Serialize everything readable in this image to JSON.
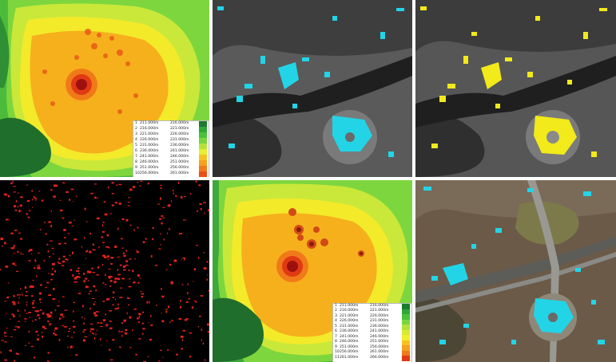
{
  "panels": [
    {
      "id": "dem-top",
      "kind": "elevation-raster"
    },
    {
      "id": "gray-cyan-top",
      "kind": "hillshade-overlay",
      "overlay_color": "#22d4e6"
    },
    {
      "id": "gray-yellow-top",
      "kind": "hillshade-overlay",
      "overlay_color": "#f2ea1a"
    },
    {
      "id": "black-red",
      "kind": "difference-raster",
      "overlay_color": "#e0241e"
    },
    {
      "id": "dem-bottom",
      "kind": "elevation-raster"
    },
    {
      "id": "aerial-cyan",
      "kind": "aerial-photo-overlay",
      "overlay_color": "#22d4e6"
    }
  ],
  "legend_top": {
    "rows": [
      {
        "n": "1",
        "lo": "211.000m",
        "hi": "216.000m",
        "color": "#1b7a2e"
      },
      {
        "n": "2",
        "lo": "216.000m",
        "hi": "221.000m",
        "color": "#2ea836"
      },
      {
        "n": "3",
        "lo": "221.000m",
        "hi": "226.000m",
        "color": "#49c23a"
      },
      {
        "n": "4",
        "lo": "226.000m",
        "hi": "231.000m",
        "color": "#78d63c"
      },
      {
        "n": "5",
        "lo": "231.000m",
        "hi": "236.000m",
        "color": "#b4e23a"
      },
      {
        "n": "6",
        "lo": "236.000m",
        "hi": "241.000m",
        "color": "#e9ef2e"
      },
      {
        "n": "7",
        "lo": "241.000m",
        "hi": "246.000m",
        "color": "#f6c21f"
      },
      {
        "n": "8",
        "lo": "246.000m",
        "hi": "251.000m",
        "color": "#f4a11c"
      },
      {
        "n": "9",
        "lo": "251.000m",
        "hi": "256.000m",
        "color": "#f07a1a"
      },
      {
        "n": "10",
        "lo": "256.000m",
        "hi": "261.000m",
        "color": "#e85017"
      }
    ]
  },
  "legend_bottom": {
    "rows": [
      {
        "n": "1",
        "lo": "211.000m",
        "hi": "216.000m",
        "color": "#1b7a2e"
      },
      {
        "n": "2",
        "lo": "216.000m",
        "hi": "221.000m",
        "color": "#2ea836"
      },
      {
        "n": "3",
        "lo": "221.000m",
        "hi": "226.000m",
        "color": "#49c23a"
      },
      {
        "n": "4",
        "lo": "226.000m",
        "hi": "231.000m",
        "color": "#78d63c"
      },
      {
        "n": "5",
        "lo": "231.000m",
        "hi": "236.000m",
        "color": "#b4e23a"
      },
      {
        "n": "6",
        "lo": "236.000m",
        "hi": "241.000m",
        "color": "#d8ea32"
      },
      {
        "n": "7",
        "lo": "241.000m",
        "hi": "246.000m",
        "color": "#f1ee2c"
      },
      {
        "n": "8",
        "lo": "246.000m",
        "hi": "251.000m",
        "color": "#f6c21f"
      },
      {
        "n": "9",
        "lo": "251.000m",
        "hi": "256.000m",
        "color": "#f4a11c"
      },
      {
        "n": "10",
        "lo": "256.000m",
        "hi": "261.000m",
        "color": "#f07a1a"
      },
      {
        "n": "11",
        "lo": "261.000m",
        "hi": "266.000m",
        "color": "#e03a14"
      }
    ]
  }
}
